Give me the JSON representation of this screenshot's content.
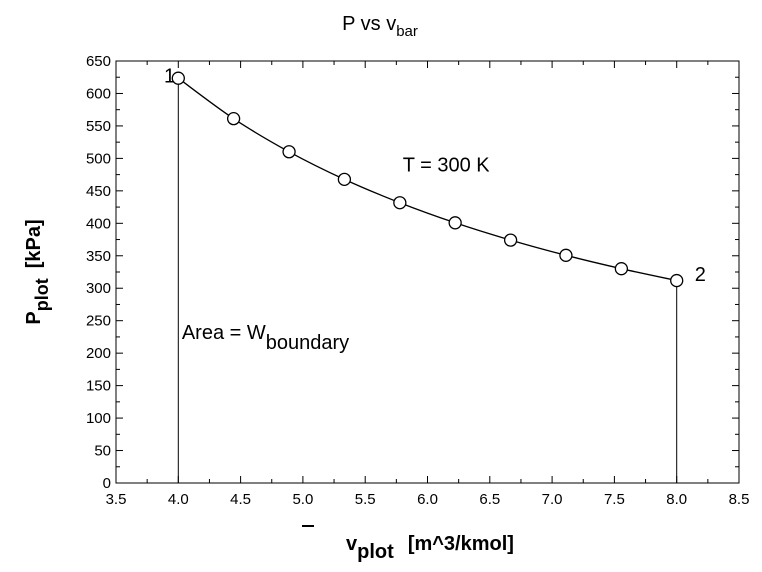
{
  "chart_data": {
    "type": "line",
    "title": {
      "main": "P vs v",
      "sub": "bar"
    },
    "xlabel": {
      "main": "v",
      "sub": "plot",
      "rest": "[m^3/kmol]"
    },
    "ylabel": {
      "main": "P",
      "sub": "plot",
      "rest": "[kPa]"
    },
    "xlim": [
      3.5,
      8.5
    ],
    "ylim": [
      0,
      650
    ],
    "xticks": [
      "3.5",
      "4.0",
      "4.5",
      "5.0",
      "5.5",
      "6.0",
      "6.5",
      "7.0",
      "7.5",
      "8.0",
      "8.5"
    ],
    "yticks": [
      "0",
      "50",
      "100",
      "150",
      "200",
      "250",
      "300",
      "350",
      "400",
      "450",
      "500",
      "550",
      "600",
      "650"
    ],
    "grid": false,
    "series": [
      {
        "x": [
          4.0,
          4.444,
          4.889,
          5.333,
          5.778,
          6.222,
          6.667,
          7.111,
          7.556,
          8.0
        ],
        "y": [
          623.5,
          561.2,
          510.2,
          467.7,
          431.7,
          400.8,
          374.1,
          350.7,
          330.1,
          311.8
        ]
      }
    ],
    "vertical_lines": [
      {
        "x": 4.0,
        "y": 623.5
      },
      {
        "x": 8.0,
        "y": 311.8
      }
    ],
    "annotations": [
      {
        "id": "state-1-label",
        "text": "1",
        "x": 3.93,
        "y": 617
      },
      {
        "id": "state-2-label",
        "text": "2",
        "x": 8.19,
        "y": 311
      },
      {
        "id": "temperature-label",
        "text": "T = 300 K",
        "x": 6.15,
        "y": 480
      },
      {
        "id": "area-label",
        "text": "Area = W",
        "sub": "boundary",
        "x": 4.7,
        "y": 222
      }
    ],
    "colors": {
      "line": "#000000",
      "marker_fill": "#ffffff",
      "axis": "#000000"
    }
  }
}
